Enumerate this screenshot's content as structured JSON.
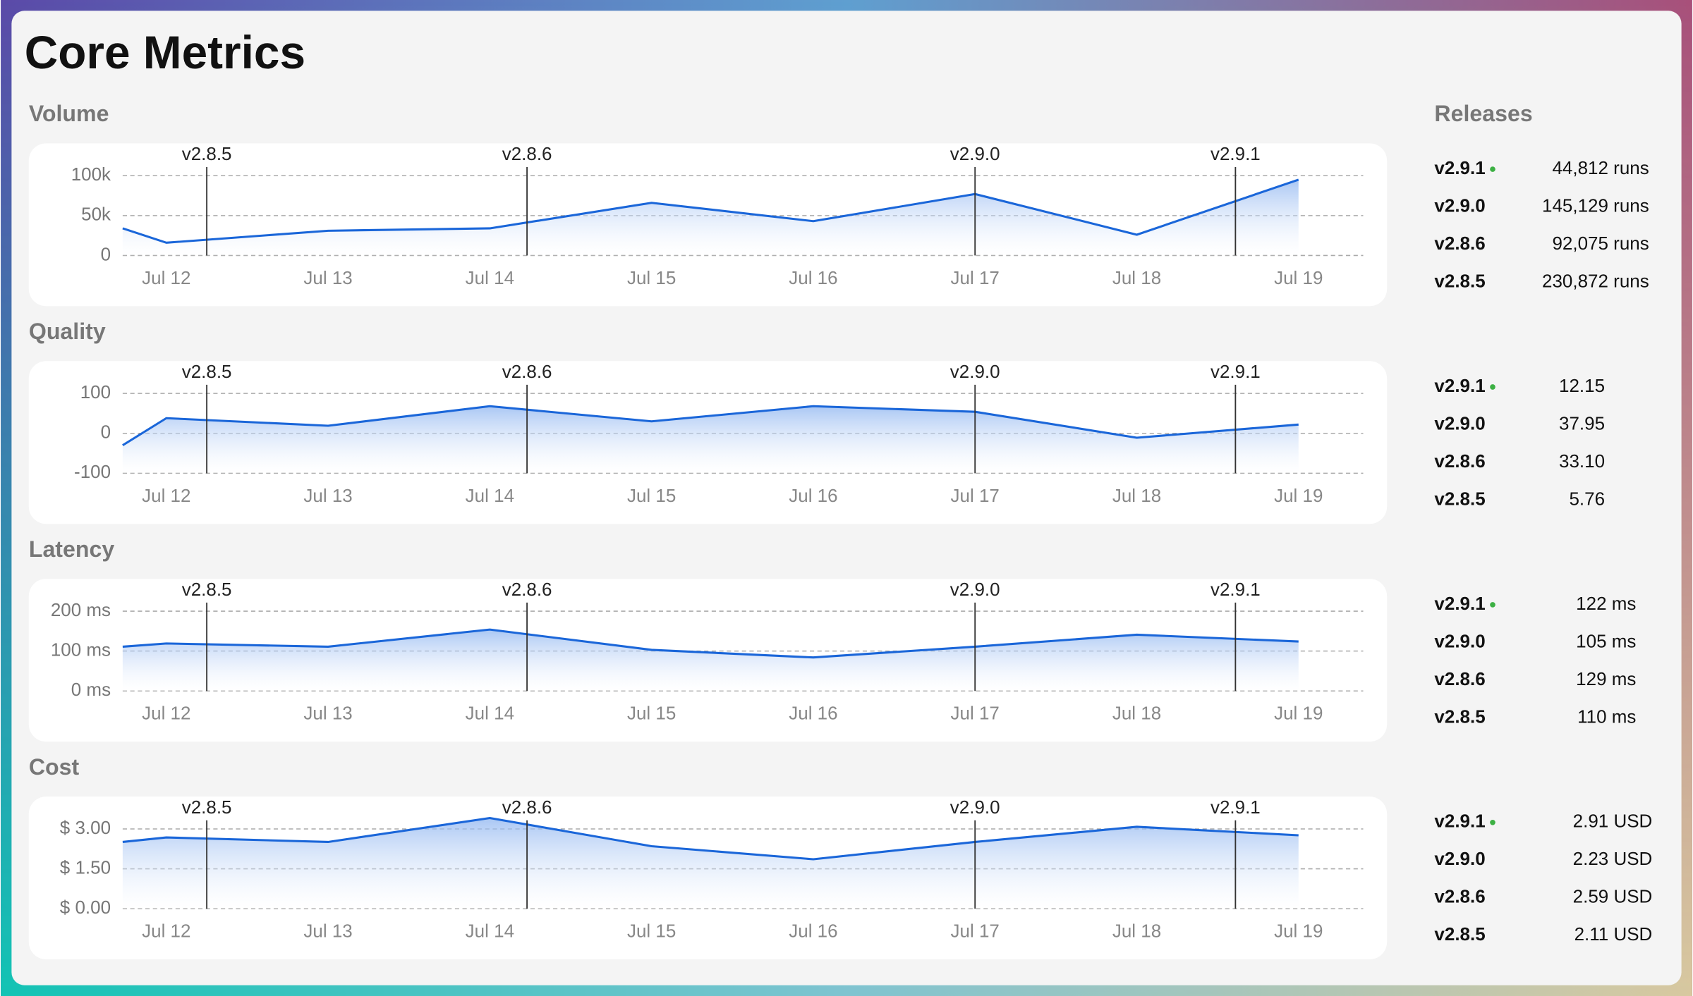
{
  "header": {
    "title": "Core Metrics"
  },
  "chart_data": [
    {
      "type": "area",
      "title": "Volume",
      "x": [
        11.73,
        12,
        13,
        14,
        15,
        16,
        17,
        18,
        19
      ],
      "xlim": [
        11.73,
        19.4
      ],
      "xticks": [
        {
          "value": 12,
          "label": "Jul 12"
        },
        {
          "value": 13,
          "label": "Jul 13"
        },
        {
          "value": 14,
          "label": "Jul 14"
        },
        {
          "value": 15,
          "label": "Jul 15"
        },
        {
          "value": 16,
          "label": "Jul 16"
        },
        {
          "value": 17,
          "label": "Jul 17"
        },
        {
          "value": 18,
          "label": "Jul 18"
        },
        {
          "value": 19,
          "label": "Jul 19"
        }
      ],
      "series": [
        {
          "color": "#1a66d9",
          "values": [
            34000,
            16000,
            31000,
            34000,
            66000,
            43000,
            77000,
            26000,
            95000
          ]
        }
      ],
      "ylim": [
        0,
        100000
      ],
      "yticks": [
        0,
        {
          "value": 50000,
          "label": "50k"
        },
        {
          "value": 100000,
          "label": "100k"
        }
      ],
      "grid": true,
      "markers": [
        {
          "label": "v2.8.5",
          "x": 12.25
        },
        {
          "label": "v2.8.6",
          "x": 14.23
        },
        {
          "label": "v2.9.0",
          "x": 17.0
        },
        {
          "label": "v2.9.1",
          "x": 18.61
        }
      ]
    },
    {
      "type": "area",
      "title": "Quality",
      "x": [
        11.73,
        12,
        13,
        14,
        15,
        16,
        17,
        18,
        19
      ],
      "xlim": [
        11.73,
        19.4
      ],
      "xticks": [
        {
          "value": 12,
          "label": "Jul 12"
        },
        {
          "value": 13,
          "label": "Jul 13"
        },
        {
          "value": 14,
          "label": "Jul 14"
        },
        {
          "value": 15,
          "label": "Jul 15"
        },
        {
          "value": 16,
          "label": "Jul 16"
        },
        {
          "value": 17,
          "label": "Jul 17"
        },
        {
          "value": 18,
          "label": "Jul 18"
        },
        {
          "value": 19,
          "label": "Jul 19"
        }
      ],
      "series": [
        {
          "color": "#1a66d9",
          "values": [
            -30,
            38,
            19,
            68,
            30,
            68,
            54,
            -11,
            22
          ]
        }
      ],
      "ylim": [
        -100,
        100
      ],
      "yticks": [
        -100,
        0,
        100
      ],
      "grid": true,
      "markers": [
        {
          "label": "v2.8.5",
          "x": 12.25
        },
        {
          "label": "v2.8.6",
          "x": 14.23
        },
        {
          "label": "v2.9.0",
          "x": 17.0
        },
        {
          "label": "v2.9.1",
          "x": 18.61
        }
      ]
    },
    {
      "type": "area",
      "title": "Latency",
      "x": [
        11.73,
        12,
        13,
        14,
        15,
        16,
        17,
        18,
        19
      ],
      "xlim": [
        11.73,
        19.4
      ],
      "xticks": [
        {
          "value": 12,
          "label": "Jul 12"
        },
        {
          "value": 13,
          "label": "Jul 13"
        },
        {
          "value": 14,
          "label": "Jul 14"
        },
        {
          "value": 15,
          "label": "Jul 15"
        },
        {
          "value": 16,
          "label": "Jul 16"
        },
        {
          "value": 17,
          "label": "Jul 17"
        },
        {
          "value": 18,
          "label": "Jul 18"
        },
        {
          "value": 19,
          "label": "Jul 19"
        }
      ],
      "series": [
        {
          "color": "#1a66d9",
          "values": [
            111,
            119,
            111,
            154,
            103,
            84,
            111,
            141,
            124
          ]
        }
      ],
      "ylim": [
        0,
        200
      ],
      "yticks": [
        {
          "value": 0,
          "label": "0 ms"
        },
        {
          "value": 100,
          "label": "100 ms"
        },
        {
          "value": 200,
          "label": "200 ms"
        }
      ],
      "grid": true,
      "markers": [
        {
          "label": "v2.8.5",
          "x": 12.25
        },
        {
          "label": "v2.8.6",
          "x": 14.23
        },
        {
          "label": "v2.9.0",
          "x": 17.0
        },
        {
          "label": "v2.9.1",
          "x": 18.61
        }
      ]
    },
    {
      "type": "area",
      "title": "Cost",
      "x": [
        11.73,
        12,
        13,
        14,
        15,
        16,
        17,
        18,
        19
      ],
      "xlim": [
        11.73,
        19.4
      ],
      "xticks": [
        {
          "value": 12,
          "label": "Jul 12"
        },
        {
          "value": 13,
          "label": "Jul 13"
        },
        {
          "value": 14,
          "label": "Jul 14"
        },
        {
          "value": 15,
          "label": "Jul 15"
        },
        {
          "value": 16,
          "label": "Jul 16"
        },
        {
          "value": 17,
          "label": "Jul 17"
        },
        {
          "value": 18,
          "label": "Jul 18"
        },
        {
          "value": 19,
          "label": "Jul 19"
        }
      ],
      "series": [
        {
          "color": "#1a66d9",
          "values": [
            2.51,
            2.68,
            2.51,
            3.41,
            2.35,
            1.86,
            2.51,
            3.08,
            2.76
          ]
        }
      ],
      "ylim": [
        0,
        3
      ],
      "yticks": [
        {
          "value": 0,
          "label": "$ 0.00"
        },
        {
          "value": 1.5,
          "label": "$ 1.50"
        },
        {
          "value": 3,
          "label": "$ 3.00"
        }
      ],
      "grid": true,
      "markers": [
        {
          "label": "v2.8.5",
          "x": 12.25
        },
        {
          "label": "v2.8.6",
          "x": 14.23
        },
        {
          "label": "v2.9.0",
          "x": 17.0
        },
        {
          "label": "v2.9.1",
          "x": 18.61
        }
      ]
    }
  ],
  "releases": {
    "title": "Releases",
    "groups": [
      [
        {
          "version": "v2.9.1",
          "value": "44,812 runs"
        },
        {
          "version": "v2.9.0",
          "value": "145,129 runs"
        },
        {
          "version": "v2.8.6",
          "value": "92,075 runs"
        },
        {
          "version": "v2.8.5",
          "value": "230,872 runs"
        }
      ],
      [
        {
          "version": "v2.9.1",
          "value": "12.15"
        },
        {
          "version": "v2.9.0",
          "value": "37.95"
        },
        {
          "version": "v2.8.6",
          "value": "33.10"
        },
        {
          "version": "v2.8.5",
          "value": "5.76"
        }
      ],
      [
        {
          "version": "v2.9.1",
          "value": "122 ms"
        },
        {
          "version": "v2.9.0",
          "value": "105 ms"
        },
        {
          "version": "v2.8.6",
          "value": "129 ms"
        },
        {
          "version": "v2.8.5",
          "value": "110 ms"
        }
      ],
      [
        {
          "version": "v2.9.1",
          "value": "2.91 USD"
        },
        {
          "version": "v2.9.0",
          "value": "2.23 USD"
        },
        {
          "version": "v2.8.6",
          "value": "2.59 USD"
        },
        {
          "version": "v2.8.5",
          "value": "2.11 USD"
        }
      ]
    ]
  }
}
